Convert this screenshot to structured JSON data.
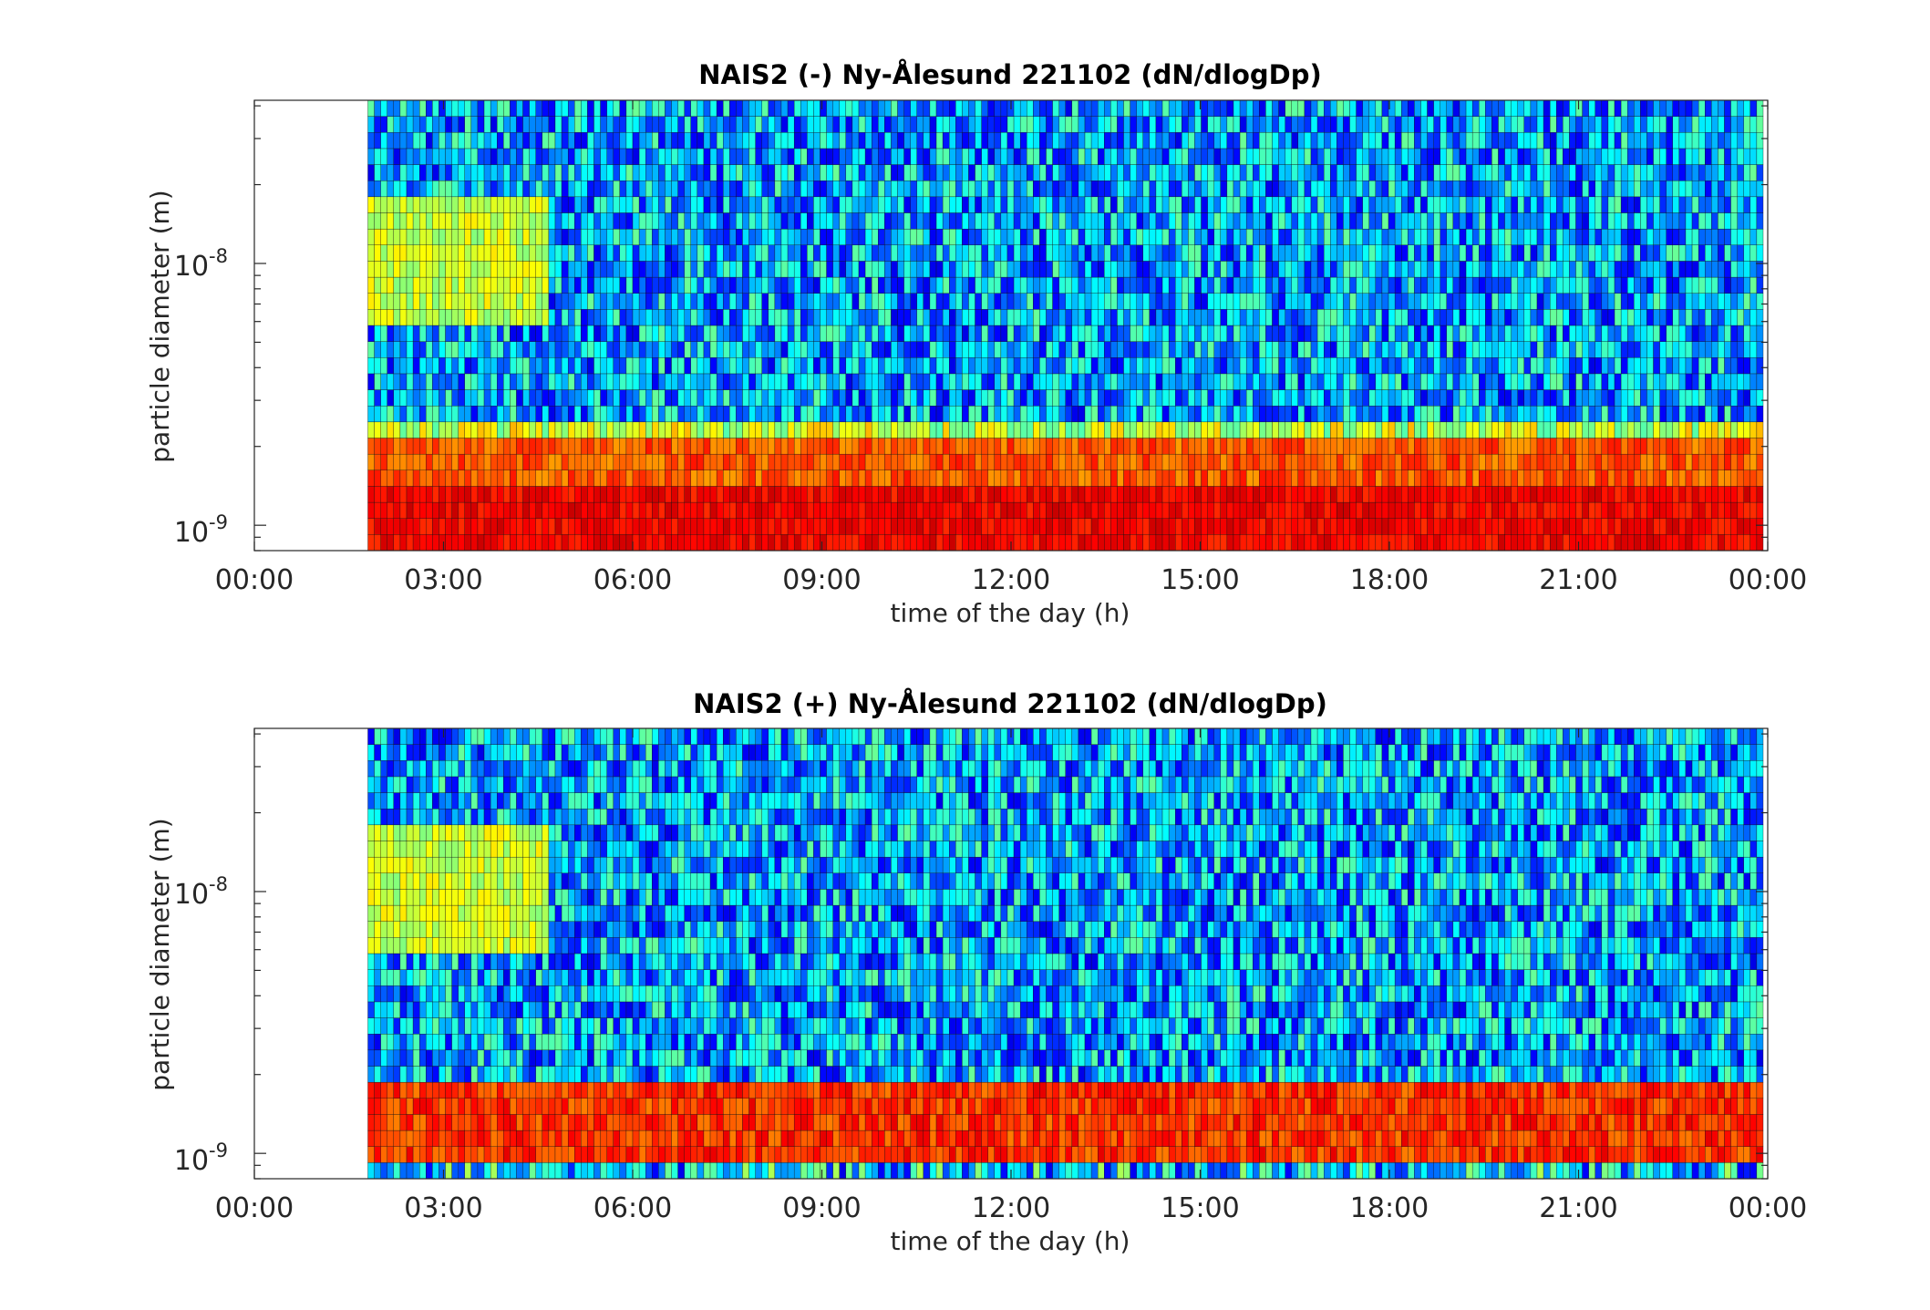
{
  "chart_data": [
    {
      "type": "heatmap",
      "title": "NAIS2 (-) Ny-Ålesund 221102 (dN/dlogDp)",
      "xlabel": "time of the day (h)",
      "ylabel": "particle diameter (m)",
      "x_tick_labels": [
        "00:00",
        "03:00",
        "06:00",
        "09:00",
        "12:00",
        "15:00",
        "18:00",
        "21:00",
        "00:00"
      ],
      "x_ticks_hours": [
        0,
        3,
        6,
        9,
        12,
        15,
        18,
        21,
        24
      ],
      "xlim_hours": [
        0,
        24
      ],
      "data_start_hour": 1.8,
      "y_tick_labels": [
        {
          "base": "10",
          "exp": "-8",
          "value": 1e-08
        },
        {
          "base": "10",
          "exp": "-9",
          "value": 1e-09
        }
      ],
      "yscale": "log",
      "ylim": [
        8e-10,
        4.2e-08
      ],
      "colormap": "jet",
      "bands": [
        {
          "dp_low": 8e-10,
          "dp_high": 2.1e-09,
          "level": "high (red/orange)"
        },
        {
          "dp_low": 2.1e-09,
          "dp_high": 2.6e-09,
          "level": "medium (yellow/cyan)"
        },
        {
          "dp_low": 2.6e-09,
          "dp_high": 4.2e-08,
          "level": "low (blue/cyan)"
        }
      ]
    },
    {
      "type": "heatmap",
      "title": "NAIS2 (+) Ny-Ålesund 221102 (dN/dlogDp)",
      "xlabel": "time of the day (h)",
      "ylabel": "particle diameter (m)",
      "x_tick_labels": [
        "00:00",
        "03:00",
        "06:00",
        "09:00",
        "12:00",
        "15:00",
        "18:00",
        "21:00",
        "00:00"
      ],
      "x_ticks_hours": [
        0,
        3,
        6,
        9,
        12,
        15,
        18,
        21,
        24
      ],
      "xlim_hours": [
        0,
        24
      ],
      "data_start_hour": 1.8,
      "y_tick_labels": [
        {
          "base": "10",
          "exp": "-8",
          "value": 1e-08
        },
        {
          "base": "10",
          "exp": "-9",
          "value": 1e-09
        }
      ],
      "yscale": "log",
      "ylim": [
        8e-10,
        4.2e-08
      ],
      "colormap": "jet",
      "bands": [
        {
          "dp_low": 8e-10,
          "dp_high": 9.3e-10,
          "level": "low (blue/cyan)"
        },
        {
          "dp_low": 9.3e-10,
          "dp_high": 1.75e-09,
          "level": "high (red/orange)"
        },
        {
          "dp_low": 1.75e-09,
          "dp_high": 2e-09,
          "level": "medium (yellow)"
        },
        {
          "dp_low": 2e-09,
          "dp_high": 4.2e-08,
          "level": "low (blue/cyan)"
        }
      ]
    }
  ]
}
